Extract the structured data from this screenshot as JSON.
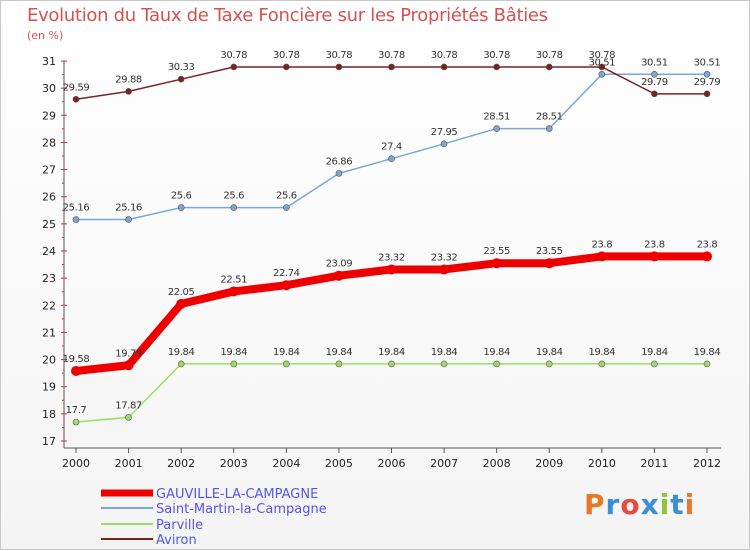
{
  "title": "Evolution du Taux de Taxe Foncière sur les Propriétés Bâties",
  "subtitle": "(en %)",
  "logo": {
    "text": "Proxiti",
    "letters": [
      "P",
      "r",
      "o",
      "x",
      "i",
      "t",
      "i"
    ],
    "colors": [
      "#e8782a",
      "#3a8fd8",
      "#e84c3d",
      "#3a8fd8",
      "#8cc63f",
      "#3a8fd8",
      "#e8782a"
    ]
  },
  "chart_data": {
    "type": "line",
    "x": [
      "2000",
      "2001",
      "2002",
      "2003",
      "2004",
      "2005",
      "2006",
      "2007",
      "2008",
      "2009",
      "2010",
      "2011",
      "2012"
    ],
    "ylim": [
      17,
      31
    ],
    "yticks": [
      17,
      18,
      19,
      20,
      21,
      22,
      23,
      24,
      25,
      26,
      27,
      28,
      29,
      30,
      31
    ],
    "grid": false,
    "legend_position": "bottom",
    "series": [
      {
        "name": "GAUVILLE-LA-CAMPAGNE",
        "color": "#ee0000",
        "width": 8,
        "values": [
          19.58,
          19.79,
          22.05,
          22.51,
          22.74,
          23.09,
          23.32,
          23.32,
          23.55,
          23.55,
          23.8,
          23.8,
          23.8
        ],
        "labels": [
          "19.58",
          "19.79",
          "22.05",
          "22.51",
          "22.74",
          "23.09",
          "23.32",
          "23.32",
          "23.55",
          "23.55",
          "23.8",
          "23.8",
          "23.8"
        ]
      },
      {
        "name": "Saint-Martin-la-Campagne",
        "color": "#7ba6d6",
        "width": 1.5,
        "values": [
          25.16,
          25.16,
          25.6,
          25.6,
          25.6,
          26.86,
          27.4,
          27.95,
          28.51,
          28.51,
          30.51,
          30.51,
          30.51
        ],
        "labels": [
          "25.16",
          "25.16",
          "25.6",
          "25.6",
          "25.6",
          "26.86",
          "27.4",
          "27.95",
          "28.51",
          "28.51",
          "30.51",
          "30.51",
          "30.51"
        ]
      },
      {
        "name": "Parville",
        "color": "#99dd66",
        "width": 1.5,
        "values": [
          17.7,
          17.87,
          19.84,
          19.84,
          19.84,
          19.84,
          19.84,
          19.84,
          19.84,
          19.84,
          19.84,
          19.84,
          19.84
        ],
        "labels": [
          "17.7",
          "17.87",
          "19.84",
          "19.84",
          "19.84",
          "19.84",
          "19.84",
          "19.84",
          "19.84",
          "19.84",
          "19.84",
          "19.84",
          "19.84"
        ]
      },
      {
        "name": "Aviron",
        "color": "#7a2222",
        "width": 1.5,
        "values": [
          29.59,
          29.88,
          30.33,
          30.78,
          30.78,
          30.78,
          30.78,
          30.78,
          30.78,
          30.78,
          30.78,
          29.79,
          29.79
        ],
        "labels": [
          "29.59",
          "29.88",
          "30.33",
          "30.78",
          "30.78",
          "30.78",
          "30.78",
          "30.78",
          "30.78",
          "30.78",
          "30.78",
          "29.79",
          "29.79"
        ]
      }
    ]
  }
}
